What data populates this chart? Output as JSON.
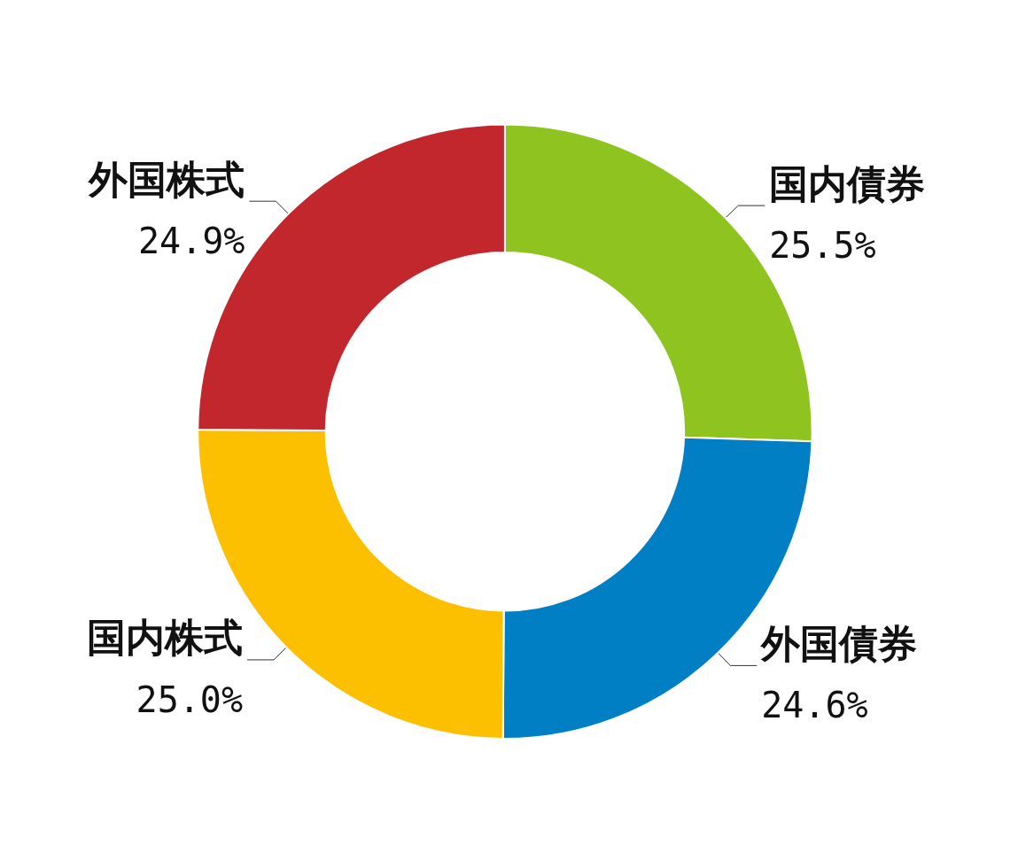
{
  "chart_data": {
    "type": "donut",
    "categories": [
      "国内債券",
      "外国債券",
      "国内株式",
      "外国株式"
    ],
    "values": [
      25.5,
      24.6,
      25.0,
      24.9
    ],
    "value_labels": [
      "25.5%",
      "24.6%",
      "25.0%",
      "24.9%"
    ],
    "colors": [
      "#8fc31f",
      "#007fc4",
      "#fdc000",
      "#c1272d"
    ],
    "legend": false
  }
}
